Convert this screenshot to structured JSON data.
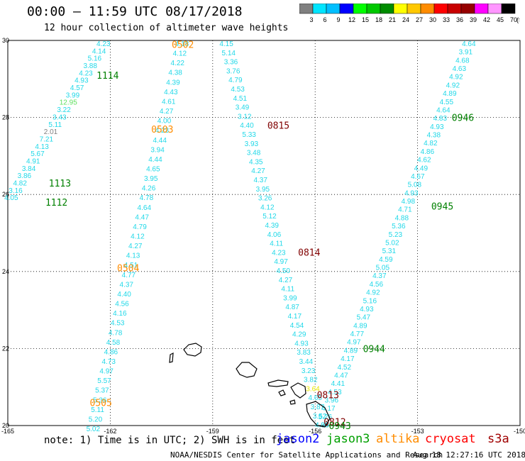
{
  "title": "00:00 – 11:59 UTC 08/17/2018",
  "subtitle": "12 hour collection of altimeter wave heights",
  "colorbar": {
    "labels": [
      "3",
      "6",
      "9",
      "12",
      "15",
      "18",
      "21",
      "24",
      "27",
      "30",
      "33",
      "36",
      "39",
      "42",
      "45",
      "70"
    ],
    "unit": "(ft)",
    "colors": [
      "#808080",
      "#00e5ff",
      "#00bfff",
      "#0000ff",
      "#00ff00",
      "#00c800",
      "#008c00",
      "#ffff00",
      "#ffc800",
      "#ff8c00",
      "#ff0000",
      "#c80000",
      "#960000",
      "#ff00ff",
      "#ff96ff",
      "#000000"
    ]
  },
  "axes": {
    "lon_ticks": [
      "-165",
      "-162",
      "-159",
      "-156",
      "-153",
      "-150"
    ],
    "lat_ticks": [
      "30",
      "28",
      "26",
      "24",
      "22",
      "20"
    ],
    "lon_range": [
      -165,
      -150
    ],
    "lat_range": [
      20,
      30
    ]
  },
  "tracks": [
    {
      "id": "t0502",
      "label": "0502",
      "color": "#ff8c00",
      "start": [
        -159.9,
        30
      ],
      "end": [
        -162.5,
        20
      ],
      "values": [
        "4.18",
        "4.12",
        "4.22",
        "4.38",
        "4.39",
        "4.43",
        "4.61",
        "4.27",
        "4.00",
        "4.23",
        "4.44",
        "3.94",
        "4.44",
        "4.65",
        "3.95",
        "4.26",
        "4.78",
        "4.64",
        "4.47",
        "4.79",
        "4.12",
        "4.27",
        "4.13",
        "4.51",
        "4.77",
        "4.37",
        "4.40",
        "4.56",
        "4.16",
        "4.53",
        "4.78",
        "4.58",
        "4.86",
        "4.73",
        "4.97",
        "5.57",
        "5.37",
        "5.36",
        "5.11",
        "5.20",
        "5.02"
      ]
    },
    {
      "id": "t1114",
      "label": "1114",
      "color": "#008000",
      "start": [
        -162.2,
        30
      ],
      "end": [
        -164.9,
        26
      ],
      "values": [
        "4.23",
        "4.14",
        "5.16",
        "3.88",
        "4.23",
        "4.93",
        "4.57",
        "3.99",
        "12.95",
        "3.22",
        "3.43",
        "5.11",
        "2.01",
        "7.21",
        "4.13",
        "5.67",
        "4.91",
        "3.84",
        "3.86",
        "4.82",
        "3.16",
        "4.05"
      ]
    },
    {
      "id": "t0815",
      "label": "0815",
      "color": "#800000",
      "start": [
        -158.6,
        30
      ],
      "end": [
        -155.8,
        20.1
      ],
      "values": [
        "4.15",
        "5.14",
        "3.36",
        "3.76",
        "4.79",
        "4.53",
        "4.51",
        "3.49",
        "3.12",
        "4.40",
        "5.33",
        "3.93",
        "3.48",
        "4.35",
        "4.27",
        "4.37",
        "3.95",
        "3.26",
        "4.12",
        "5.12",
        "4.39",
        "4.06",
        "4.11",
        "4.23",
        "4.97",
        "4.50",
        "4.27",
        "4.11",
        "3.99",
        "4.87",
        "4.17",
        "4.54",
        "4.29",
        "4.93",
        "3.83",
        "3.44",
        "3.23",
        "3.82",
        "3.64",
        "4.65",
        "3.87",
        "3.52",
        "4.36"
      ]
    },
    {
      "id": "t0946",
      "label": "0946",
      "color": "#008000",
      "start": [
        -151.5,
        30
      ],
      "end": [
        -155.8,
        20.1
      ],
      "values": [
        "4.64",
        "3.91",
        "4.68",
        "4.63",
        "4.92",
        "4.92",
        "4.89",
        "4.55",
        "4.64",
        "4.83",
        "4.93",
        "4.38",
        "4.82",
        "4.86",
        "4.62",
        "4.49",
        "4.67",
        "5.08",
        "4.93",
        "4.98",
        "4.71",
        "4.88",
        "5.36",
        "5.23",
        "5.02",
        "5.31",
        "4.59",
        "5.05",
        "4.37",
        "4.56",
        "4.92",
        "5.16",
        "4.93",
        "5.47",
        "4.89",
        "4.77",
        "4.97",
        "4.89",
        "4.17",
        "4.52",
        "4.47",
        "4.41",
        "4.53",
        "3.96",
        "4.17",
        "5.26",
        "4.00"
      ]
    }
  ],
  "highlight_values": [
    {
      "text": "12.95",
      "color": "#60e060"
    },
    {
      "text": "2.01",
      "color": "#808080"
    },
    {
      "text": "3.64",
      "color": "#e8e800"
    }
  ],
  "pass_labels": [
    {
      "text": "0502",
      "color": "#ff8c00",
      "lon": -160.2,
      "lat": 29.9
    },
    {
      "text": "0503",
      "color": "#ff8c00",
      "lon": -160.8,
      "lat": 27.7
    },
    {
      "text": "0504",
      "color": "#ff8c00",
      "lon": -161.8,
      "lat": 24.1
    },
    {
      "text": "0505",
      "color": "#ff8c00",
      "lon": -162.6,
      "lat": 20.6
    },
    {
      "text": "1114",
      "color": "#008000",
      "lon": -162.4,
      "lat": 29.1
    },
    {
      "text": "1113",
      "color": "#008000",
      "lon": -163.8,
      "lat": 26.3
    },
    {
      "text": "1112",
      "color": "#008000",
      "lon": -163.9,
      "lat": 25.8
    },
    {
      "text": "0815",
      "color": "#800000",
      "lon": -157.4,
      "lat": 27.8
    },
    {
      "text": "0814",
      "color": "#800000",
      "lon": -156.5,
      "lat": 24.5
    },
    {
      "text": "0813",
      "color": "#800000",
      "lon": -155.95,
      "lat": 20.8
    },
    {
      "text": "0812",
      "color": "#800000",
      "lon": -155.75,
      "lat": 20.1
    },
    {
      "text": "0946",
      "color": "#008000",
      "lon": -152.0,
      "lat": 28.0
    },
    {
      "text": "0945",
      "color": "#008000",
      "lon": -152.6,
      "lat": 25.7
    },
    {
      "text": "0944",
      "color": "#008000",
      "lon": -154.6,
      "lat": 22.0
    },
    {
      "text": "0943",
      "color": "#008000",
      "lon": -155.6,
      "lat": 20.0
    }
  ],
  "footer": {
    "note": "note: 1) Time is in UTC; 2) SWH is in feet",
    "satellites": [
      "jason2",
      "jason3",
      "altika",
      "cryosat",
      "s3a"
    ],
    "credit": "NOAA/NESDIS Center for Satellite Applications and Research",
    "generated": "Aug 18 12:27:16 UTC 2018"
  }
}
